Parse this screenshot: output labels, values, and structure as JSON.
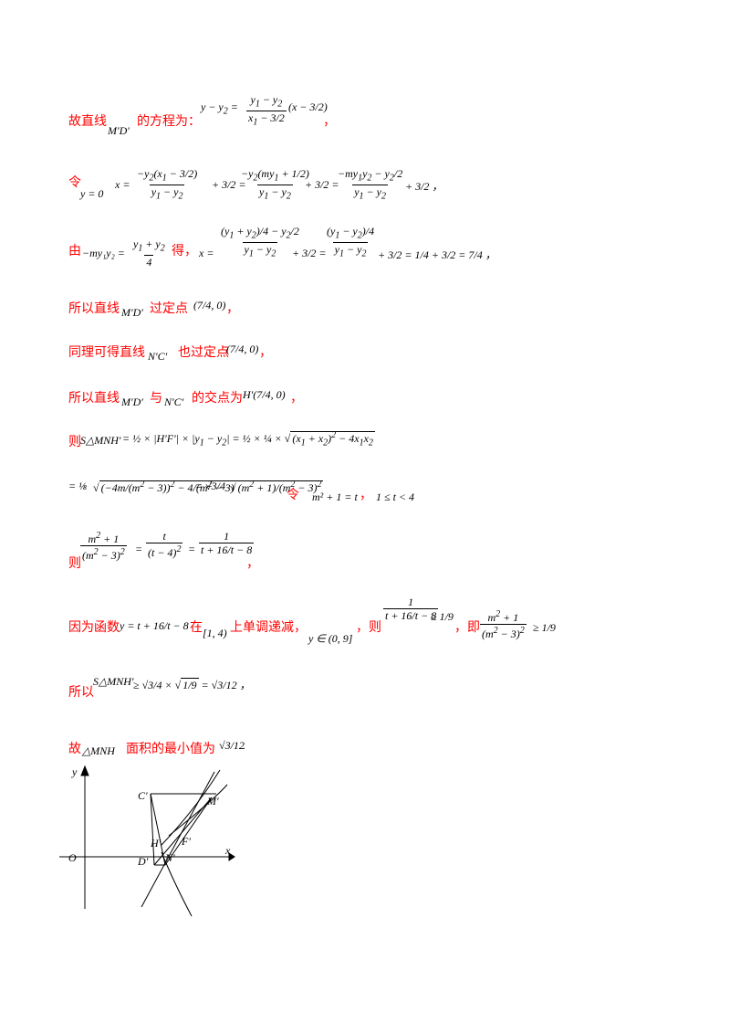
{
  "text": {
    "l1": "故直线",
    "l1b": "的方程为：",
    "l2": "令",
    "l3": "由",
    "l3b": "得，",
    "l4": "所以直线",
    "l4b": "过定点",
    "l5": "同理可得直线",
    "l5b": "也过定点",
    "l6": "所以直线",
    "l6b": "与",
    "l6c": "的交点为",
    "l7": "则",
    "l8": "令",
    "l9": "则",
    "l10": "因为函数",
    "l10b": "在",
    "l10c": "上单调递减，",
    "l10d": "，则",
    "l10e": "，即",
    "l11": "所以",
    "l12": "故",
    "l12b": "面积的最小值为"
  },
  "math": {
    "md": "M′D′",
    "nc": "N′C′",
    "y0": "y = 0",
    "cond": "−my₁y₂ = ",
    "pt": "(7/4, 0)",
    "h": "H′(7/4, 0)",
    "s_label": "S△MNH′",
    "sub_t": "m² + 1 = t",
    "t_range": "1 ≤ t < 4",
    "func": "y = t + 16/t − 8",
    "interval": "[1, 4)",
    "range": "y ∈ (0, 9]",
    "tri": "△MNH",
    "ans": "√3/12"
  },
  "figure": {
    "axis_x": "x",
    "axis_y": "y",
    "origin": "O",
    "labels": [
      "C′",
      "M′",
      "H′",
      "F′",
      "D′",
      "N′"
    ]
  }
}
